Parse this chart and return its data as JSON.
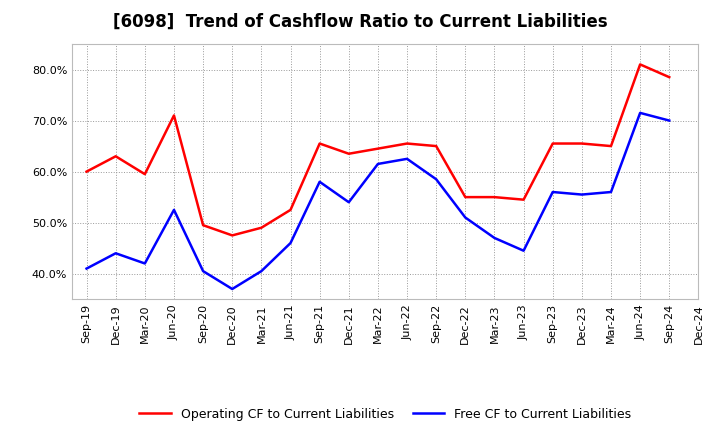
{
  "title": "[6098]  Trend of Cashflow Ratio to Current Liabilities",
  "x_labels": [
    "Sep-19",
    "Dec-19",
    "Mar-20",
    "Jun-20",
    "Sep-20",
    "Dec-20",
    "Mar-21",
    "Jun-21",
    "Sep-21",
    "Dec-21",
    "Mar-22",
    "Jun-22",
    "Sep-22",
    "Dec-22",
    "Mar-23",
    "Jun-23",
    "Sep-23",
    "Dec-23",
    "Mar-24",
    "Jun-24",
    "Sep-24",
    "Dec-24"
  ],
  "operating_cf": [
    60.0,
    63.0,
    59.5,
    71.0,
    49.5,
    47.5,
    49.0,
    52.5,
    65.5,
    63.5,
    64.5,
    65.5,
    65.0,
    55.0,
    55.0,
    54.5,
    65.5,
    65.5,
    65.0,
    81.0,
    78.5,
    null
  ],
  "free_cf": [
    41.0,
    44.0,
    42.0,
    52.5,
    40.5,
    37.0,
    40.5,
    46.0,
    58.0,
    54.0,
    61.5,
    62.5,
    58.5,
    51.0,
    47.0,
    44.5,
    56.0,
    55.5,
    56.0,
    71.5,
    70.0,
    null
  ],
  "operating_color": "#ff0000",
  "free_color": "#0000ff",
  "ylim": [
    35,
    85
  ],
  "yticks": [
    40.0,
    50.0,
    60.0,
    70.0,
    80.0
  ],
  "background_color": "#ffffff",
  "grid_color": "#999999",
  "legend_operating": "Operating CF to Current Liabilities",
  "legend_free": "Free CF to Current Liabilities",
  "title_fontsize": 12,
  "tick_fontsize": 8,
  "legend_fontsize": 9,
  "line_width": 1.8
}
